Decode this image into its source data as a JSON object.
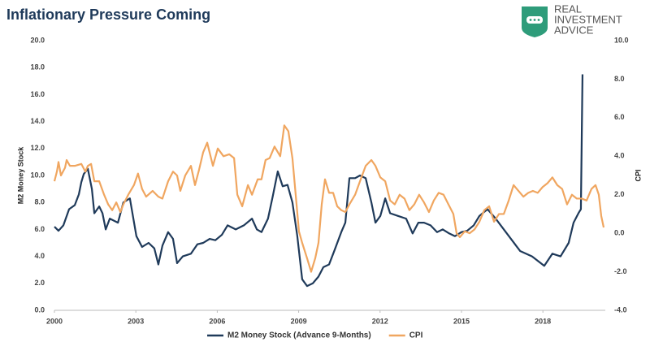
{
  "logo": {
    "lines": [
      "REAL",
      "INVESTMENT",
      "ADVICE"
    ]
  },
  "chart_data": {
    "type": "line",
    "title": "Inflationary Pressure Coming",
    "ylabel": "M2 Money Stock",
    "y2label": "CPI",
    "xlim": [
      2000,
      2020.3
    ],
    "xticks": [
      2000,
      2003,
      2006,
      2009,
      2012,
      2015,
      2018
    ],
    "ylim": [
      0,
      20
    ],
    "yticks": [
      {
        "value": 0,
        "label": "0.0"
      },
      {
        "value": 2,
        "label": "2.0"
      },
      {
        "value": 4,
        "label": "4.0"
      },
      {
        "value": 6,
        "label": "6.0"
      },
      {
        "value": 8,
        "label": "8.0"
      },
      {
        "value": 10,
        "label": "10.0"
      },
      {
        "value": 12,
        "label": "12.0"
      },
      {
        "value": 14,
        "label": "14.0"
      },
      {
        "value": 16,
        "label": "16.0"
      },
      {
        "value": 18,
        "label": "18.0"
      },
      {
        "value": 20,
        "label": "20.0"
      }
    ],
    "y2lim": [
      -4,
      10
    ],
    "y2ticks": [
      {
        "value": -4,
        "label": "-4.0"
      },
      {
        "value": -2,
        "label": "-2.0"
      },
      {
        "value": 0,
        "label": "0.0"
      },
      {
        "value": 2,
        "label": "2.0"
      },
      {
        "value": 4,
        "label": "4.0"
      },
      {
        "value": 6,
        "label": "6.0"
      },
      {
        "value": 8,
        "label": "8.0"
      },
      {
        "value": 10,
        "label": "10.0"
      }
    ],
    "grid": false,
    "series": [
      {
        "name": "M2 Money Stock (Advance 9-Months)",
        "color": "#1f3a5a",
        "x": [
          2000.0,
          2000.15,
          2000.33,
          2000.54,
          2000.75,
          2000.9,
          2000.99,
          2001.08,
          2001.23,
          2001.38,
          2001.47,
          2001.65,
          2001.77,
          2001.89,
          2002.04,
          2002.34,
          2002.54,
          2002.78,
          2003.02,
          2003.23,
          2003.47,
          2003.68,
          2003.83,
          2003.98,
          2004.19,
          2004.37,
          2004.52,
          2004.73,
          2005.03,
          2005.27,
          2005.48,
          2005.72,
          2005.93,
          2006.17,
          2006.38,
          2006.68,
          2006.98,
          2007.28,
          2007.46,
          2007.63,
          2007.87,
          2008.05,
          2008.23,
          2008.41,
          2008.59,
          2008.77,
          2008.95,
          2009.13,
          2009.31,
          2009.52,
          2009.73,
          2009.91,
          2010.12,
          2010.33,
          2010.57,
          2010.72,
          2010.87,
          2011.08,
          2011.26,
          2011.47,
          2011.68,
          2011.83,
          2012.01,
          2012.19,
          2012.37,
          2012.66,
          2012.96,
          2013.2,
          2013.41,
          2013.62,
          2013.86,
          2014.1,
          2014.31,
          2014.55,
          2014.76,
          2015.0,
          2015.21,
          2015.45,
          2015.66,
          2015.96,
          2016.26,
          2016.56,
          2016.86,
          2017.16,
          2017.6,
          2018.05,
          2018.35,
          2018.65,
          2018.95,
          2019.13,
          2019.31,
          2019.4,
          2019.46
        ],
        "values": [
          6.2,
          5.9,
          6.3,
          7.5,
          7.8,
          8.6,
          9.5,
          10.1,
          10.5,
          9.0,
          7.2,
          7.7,
          7.2,
          6.0,
          6.8,
          6.5,
          8.0,
          8.3,
          5.5,
          4.7,
          5.0,
          4.6,
          3.4,
          4.8,
          5.8,
          5.3,
          3.5,
          4.0,
          4.2,
          4.9,
          5.0,
          5.3,
          5.2,
          5.6,
          6.3,
          6.0,
          6.3,
          6.8,
          6.0,
          5.8,
          6.8,
          8.5,
          10.3,
          9.2,
          9.3,
          8.0,
          5.5,
          2.3,
          1.8,
          2.0,
          2.5,
          3.2,
          3.4,
          4.5,
          5.8,
          6.5,
          9.8,
          9.8,
          10.0,
          9.8,
          8.0,
          6.5,
          7.0,
          8.3,
          7.2,
          7.0,
          6.8,
          5.7,
          6.5,
          6.5,
          6.3,
          5.8,
          6.0,
          5.7,
          5.5,
          5.8,
          5.9,
          6.3,
          7.0,
          7.5,
          6.8,
          6.0,
          5.2,
          4.4,
          4.0,
          3.3,
          4.2,
          4.0,
          5.0,
          6.5,
          7.2,
          7.5,
          17.5
        ]
      },
      {
        "name": "CPI",
        "color": "#f0a660",
        "axis": "y2",
        "x": [
          2000.0,
          2000.09,
          2000.15,
          2000.24,
          2000.39,
          2000.45,
          2000.57,
          2000.75,
          2000.99,
          2001.14,
          2001.23,
          2001.35,
          2001.47,
          2001.65,
          2001.83,
          2001.98,
          2002.13,
          2002.28,
          2002.43,
          2002.54,
          2002.72,
          2002.93,
          2003.08,
          2003.23,
          2003.38,
          2003.62,
          2003.83,
          2003.98,
          2004.19,
          2004.37,
          2004.52,
          2004.64,
          2004.82,
          2005.03,
          2005.18,
          2005.33,
          2005.48,
          2005.63,
          2005.84,
          2006.02,
          2006.23,
          2006.44,
          2006.62,
          2006.74,
          2006.92,
          2007.13,
          2007.28,
          2007.49,
          2007.63,
          2007.78,
          2007.93,
          2008.11,
          2008.32,
          2008.47,
          2008.62,
          2008.77,
          2008.89,
          2009.01,
          2009.13,
          2009.31,
          2009.46,
          2009.61,
          2009.73,
          2009.85,
          2009.97,
          2010.12,
          2010.27,
          2010.42,
          2010.57,
          2010.72,
          2010.87,
          2011.08,
          2011.26,
          2011.47,
          2011.68,
          2011.83,
          2012.01,
          2012.19,
          2012.37,
          2012.54,
          2012.72,
          2012.9,
          2013.08,
          2013.26,
          2013.44,
          2013.62,
          2013.8,
          2013.98,
          2014.16,
          2014.34,
          2014.52,
          2014.7,
          2014.82,
          2014.94,
          2015.12,
          2015.3,
          2015.48,
          2015.66,
          2015.84,
          2016.02,
          2016.2,
          2016.38,
          2016.56,
          2016.74,
          2016.92,
          2017.1,
          2017.28,
          2017.46,
          2017.63,
          2017.81,
          2017.99,
          2018.17,
          2018.35,
          2018.53,
          2018.71,
          2018.89,
          2019.07,
          2019.25,
          2019.43,
          2019.61,
          2019.79,
          2019.94,
          2020.06,
          2020.15,
          2020.24
        ],
        "values": [
          2.7,
          3.2,
          3.7,
          3.0,
          3.4,
          3.8,
          3.5,
          3.5,
          3.6,
          3.2,
          3.5,
          3.6,
          2.7,
          2.7,
          2.0,
          1.5,
          1.2,
          1.6,
          1.1,
          1.5,
          2.0,
          2.5,
          3.1,
          2.3,
          1.9,
          2.2,
          1.9,
          1.8,
          2.7,
          3.2,
          3.0,
          2.2,
          3.0,
          3.5,
          2.5,
          3.3,
          4.2,
          4.7,
          3.5,
          4.4,
          4.0,
          4.1,
          3.9,
          2.0,
          1.4,
          2.5,
          2.0,
          2.8,
          2.8,
          3.8,
          3.9,
          4.5,
          4.0,
          5.6,
          5.3,
          3.9,
          2.0,
          0.1,
          -0.5,
          -1.3,
          -2.0,
          -1.3,
          -0.5,
          1.5,
          2.8,
          2.1,
          2.1,
          1.4,
          1.2,
          1.1,
          1.5,
          2.0,
          2.7,
          3.5,
          3.8,
          3.5,
          2.9,
          2.7,
          1.7,
          1.5,
          2.0,
          1.8,
          1.2,
          1.5,
          2.0,
          1.6,
          1.1,
          1.7,
          2.1,
          2.0,
          1.5,
          1.0,
          0.0,
          -0.2,
          0.1,
          0.0,
          0.2,
          0.6,
          1.2,
          1.4,
          0.6,
          1.0,
          1.0,
          1.7,
          2.5,
          2.2,
          1.9,
          2.1,
          2.2,
          2.1,
          2.4,
          2.6,
          2.9,
          2.5,
          2.3,
          1.5,
          2.0,
          1.8,
          1.8,
          1.7,
          2.3,
          2.5,
          2.0,
          0.9,
          0.3
        ]
      }
    ]
  }
}
